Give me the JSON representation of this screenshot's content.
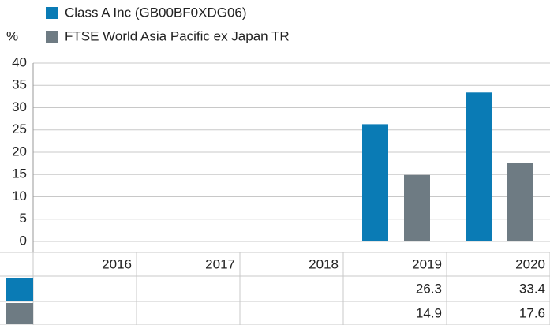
{
  "chart_data": {
    "type": "bar",
    "y_label": "%",
    "categories": [
      "2016",
      "2017",
      "2018",
      "2019",
      "2020"
    ],
    "series": [
      {
        "name": "Class A Inc (GB00BF0XDG06)",
        "color": "#0a7bb5",
        "values": [
          null,
          null,
          null,
          26.3,
          33.4
        ]
      },
      {
        "name": "FTSE World Asia Pacific ex Japan TR",
        "color": "#6e7b83",
        "values": [
          null,
          null,
          null,
          14.9,
          17.6
        ]
      }
    ],
    "ylim": [
      0,
      40
    ],
    "yticks": [
      0,
      5,
      10,
      15,
      20,
      25,
      30,
      35,
      40
    ],
    "grid": true,
    "legend": "top"
  }
}
